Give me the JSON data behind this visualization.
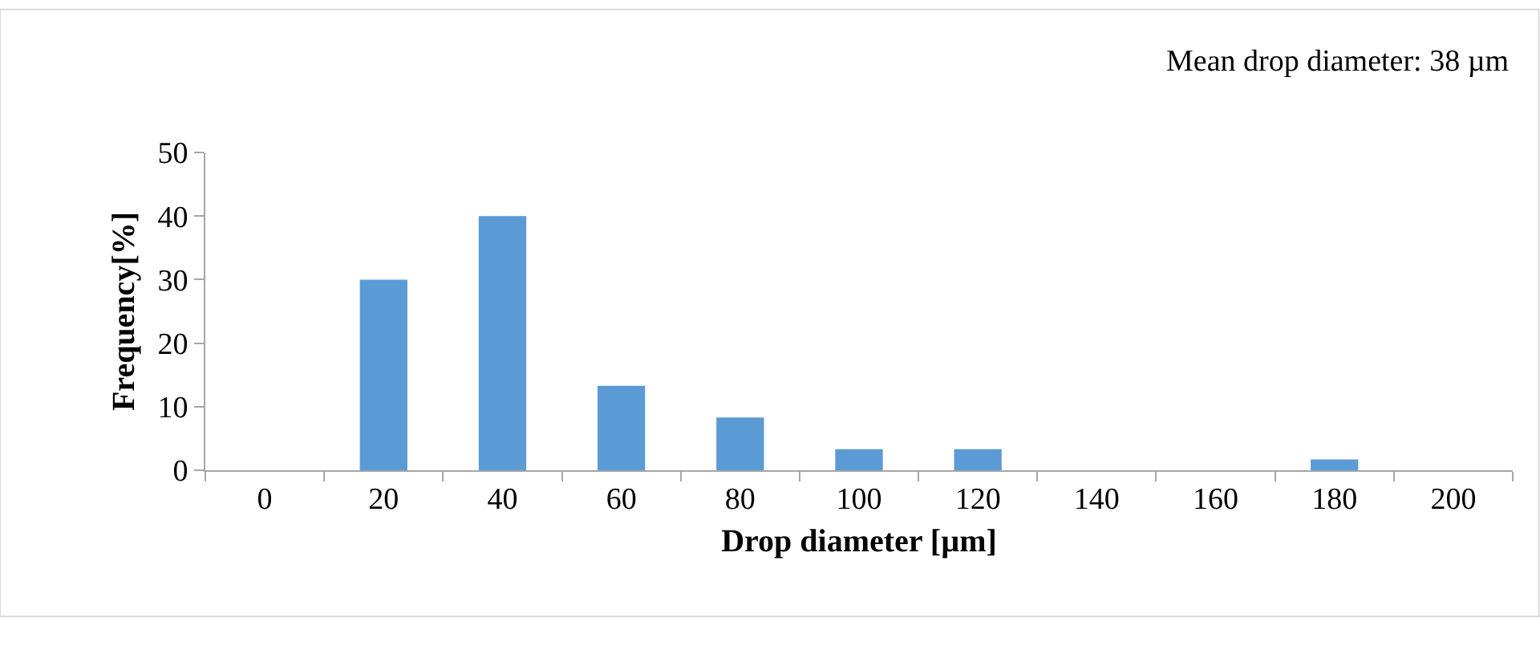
{
  "chart_data": {
    "type": "bar",
    "xlabel": "Drop diameter [µm]",
    "ylabel": "Frequency[%]",
    "annotations": [
      "Mean drop diameter: 38 µm"
    ],
    "categories": [
      "0",
      "20",
      "40",
      "60",
      "80",
      "100",
      "120",
      "140",
      "160",
      "180",
      "200"
    ],
    "values": [
      0,
      30,
      40,
      13.3,
      8.3,
      3.3,
      3.3,
      0,
      0,
      1.7,
      0
    ],
    "color": "#5b9bd5",
    "ylim": [
      0,
      50
    ],
    "yticks": [
      0,
      10,
      20,
      30,
      40,
      50
    ]
  }
}
